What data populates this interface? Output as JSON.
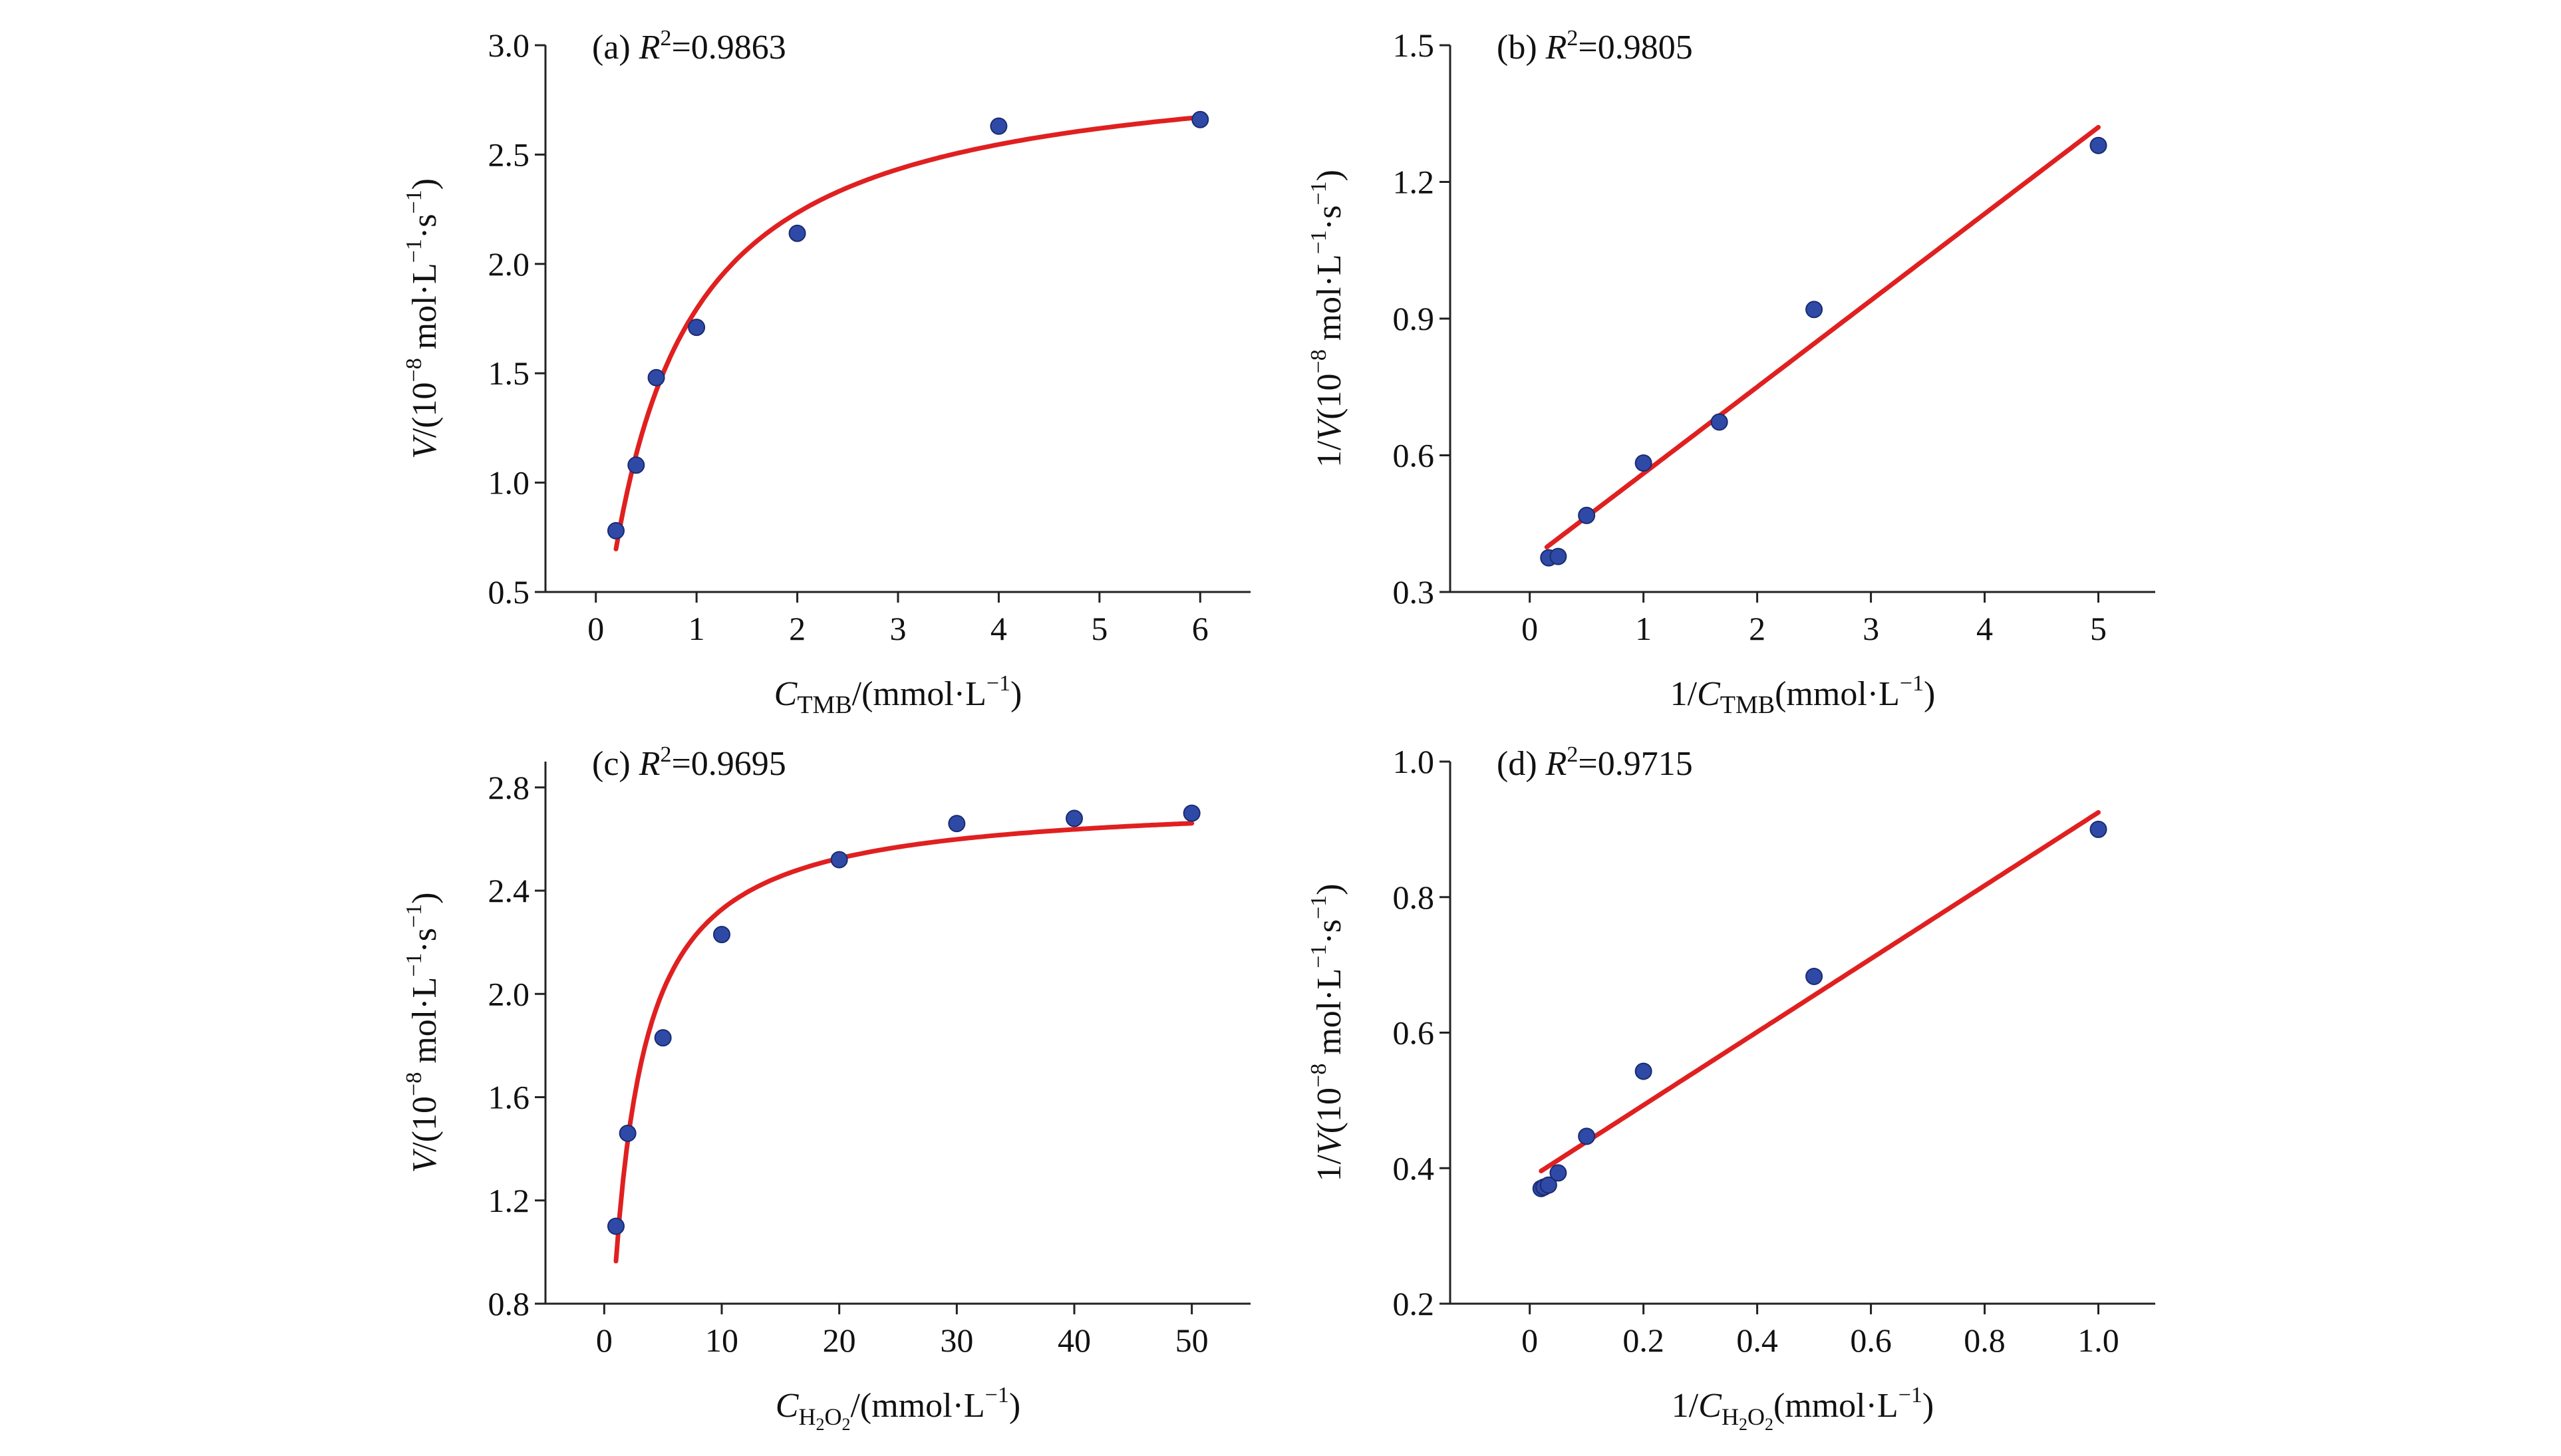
{
  "colors": {
    "fit_line": "#e02020",
    "points": "#2f4aa6",
    "axes": "#222222"
  },
  "chart_data": [
    {
      "id": "a",
      "type": "scatter",
      "panel_label": "(a) ",
      "r2_value": "=0.9863",
      "xlabel": {
        "main": "C",
        "sub": "TMB",
        "rest": "/(mmol·L",
        "sup": "−1",
        "close": ")"
      },
      "ylabel": {
        "prefix": "",
        "italic": "V",
        "rest": "/(10",
        "sup1": "−8",
        "mid": " mol·L",
        "sup2": "−1",
        "dot": "·s",
        "sup3": "−1",
        "close": ")"
      },
      "xlim": [
        -0.5,
        6.5
      ],
      "ylim": [
        0.5,
        3.0
      ],
      "xticks": [
        0,
        1,
        2,
        3,
        4,
        5,
        6
      ],
      "xtick_labels": [
        "0",
        "1",
        "2",
        "3",
        "4",
        "5",
        "6"
      ],
      "yticks": [
        0.5,
        1.0,
        1.5,
        2.0,
        2.5,
        3.0
      ],
      "ytick_labels": [
        "0.5",
        "1.0",
        "1.5",
        "2.0",
        "2.5",
        "3.0"
      ],
      "points": {
        "x": [
          0.2,
          0.4,
          0.6,
          1.0,
          2.0,
          4.0,
          6.0
        ],
        "y": [
          0.78,
          1.08,
          1.48,
          1.71,
          2.14,
          2.63,
          2.66
        ]
      },
      "fit": {
        "model": "michaelis-menten",
        "Vmax": 2.96,
        "Km": 0.65,
        "x_range": [
          0.2,
          6.0
        ]
      }
    },
    {
      "id": "b",
      "type": "scatter",
      "panel_label": "(b) ",
      "r2_value": "=0.9805",
      "xlabel": {
        "main": "C",
        "sub": "TMB",
        "rest": "(mmol·L",
        "sup": "−1",
        "close": ")",
        "prefix": "1/"
      },
      "ylabel": {
        "prefix": "1/",
        "italic": "V",
        "rest": "(10",
        "sup1": "−8",
        "mid": " mol·L",
        "sup2": "−1",
        "dot": "·s",
        "sup3": "−1",
        "close": ")"
      },
      "xlim": [
        -0.7,
        5.5
      ],
      "ylim": [
        0.3,
        1.5
      ],
      "xticks": [
        0,
        1,
        2,
        3,
        4,
        5
      ],
      "xtick_labels": [
        "0",
        "1",
        "2",
        "3",
        "4",
        "5"
      ],
      "yticks": [
        0.3,
        0.6,
        0.9,
        1.2,
        1.5
      ],
      "ytick_labels": [
        "0.3",
        "0.6",
        "0.9",
        "1.2",
        "1.5"
      ],
      "points": {
        "x": [
          0.167,
          0.25,
          0.5,
          1.0,
          1.667,
          2.5,
          5.0
        ],
        "y": [
          0.375,
          0.378,
          0.468,
          0.583,
          0.673,
          0.92,
          1.28
        ]
      },
      "fit": {
        "model": "linear",
        "slope": 0.19,
        "intercept": 0.37,
        "x_range": [
          0.15,
          5.0
        ]
      }
    },
    {
      "id": "c",
      "type": "scatter",
      "panel_label": "(c) ",
      "r2_value": "=0.9695",
      "xlabel": {
        "main": "C",
        "sub": "H",
        "sub2": "2",
        "sub3": "O",
        "sub4": "2",
        "rest": "/(mmol·L",
        "sup": "−1",
        "close": ")"
      },
      "ylabel": {
        "prefix": "",
        "italic": "V",
        "rest": "/(10",
        "sup1": "−8",
        "mid": " mol·L",
        "sup2": "−1",
        "dot": "·s",
        "sup3": "−1",
        "close": ")"
      },
      "xlim": [
        -5,
        55
      ],
      "ylim": [
        0.8,
        2.9
      ],
      "xticks": [
        0,
        10,
        20,
        30,
        40,
        50
      ],
      "xtick_labels": [
        "0",
        "10",
        "20",
        "30",
        "40",
        "50"
      ],
      "yticks": [
        0.8,
        1.2,
        1.6,
        2.0,
        2.4,
        2.8
      ],
      "ytick_labels": [
        "0.8",
        "1.2",
        "1.6",
        "2.0",
        "2.4",
        "2.8"
      ],
      "points": {
        "x": [
          1,
          2,
          5,
          10,
          20,
          30,
          40,
          50
        ],
        "y": [
          1.1,
          1.46,
          1.83,
          2.23,
          2.52,
          2.66,
          2.68,
          2.7
        ]
      },
      "fit": {
        "model": "michaelis-menten",
        "Vmax": 2.76,
        "Km": 1.86,
        "x_range": [
          1,
          50
        ]
      }
    },
    {
      "id": "d",
      "type": "scatter",
      "panel_label": "(d) ",
      "r2_value": "=0.9715",
      "xlabel": {
        "main": "C",
        "sub": "H",
        "sub2": "2",
        "sub3": "O",
        "sub4": "2",
        "rest": "(mmol·L",
        "sup": "−1",
        "close": ")",
        "prefix": "1/"
      },
      "ylabel": {
        "prefix": "1/",
        "italic": "V",
        "rest": "(10",
        "sup1": "−8",
        "mid": " mol·L",
        "sup2": "−1",
        "dot": "·s",
        "sup3": "−1",
        "close": ")"
      },
      "xlim": [
        -0.14,
        1.1
      ],
      "ylim": [
        0.2,
        1.0
      ],
      "xticks": [
        0,
        0.2,
        0.4,
        0.6,
        0.8,
        1.0
      ],
      "xtick_labels": [
        "0",
        "0.2",
        "0.4",
        "0.6",
        "0.8",
        "1.0"
      ],
      "yticks": [
        0.2,
        0.4,
        0.6,
        0.8,
        1.0
      ],
      "ytick_labels": [
        "0.2",
        "0.4",
        "0.6",
        "0.8",
        "1.0"
      ],
      "points": {
        "x": [
          0.02,
          0.025,
          0.033,
          0.05,
          0.1,
          0.2,
          0.5,
          1.0
        ],
        "y": [
          0.37,
          0.372,
          0.375,
          0.393,
          0.447,
          0.543,
          0.683,
          0.9
        ]
      },
      "fit": {
        "model": "linear",
        "slope": 0.54,
        "intercept": 0.385,
        "x_range": [
          0.02,
          1.0
        ]
      }
    }
  ]
}
